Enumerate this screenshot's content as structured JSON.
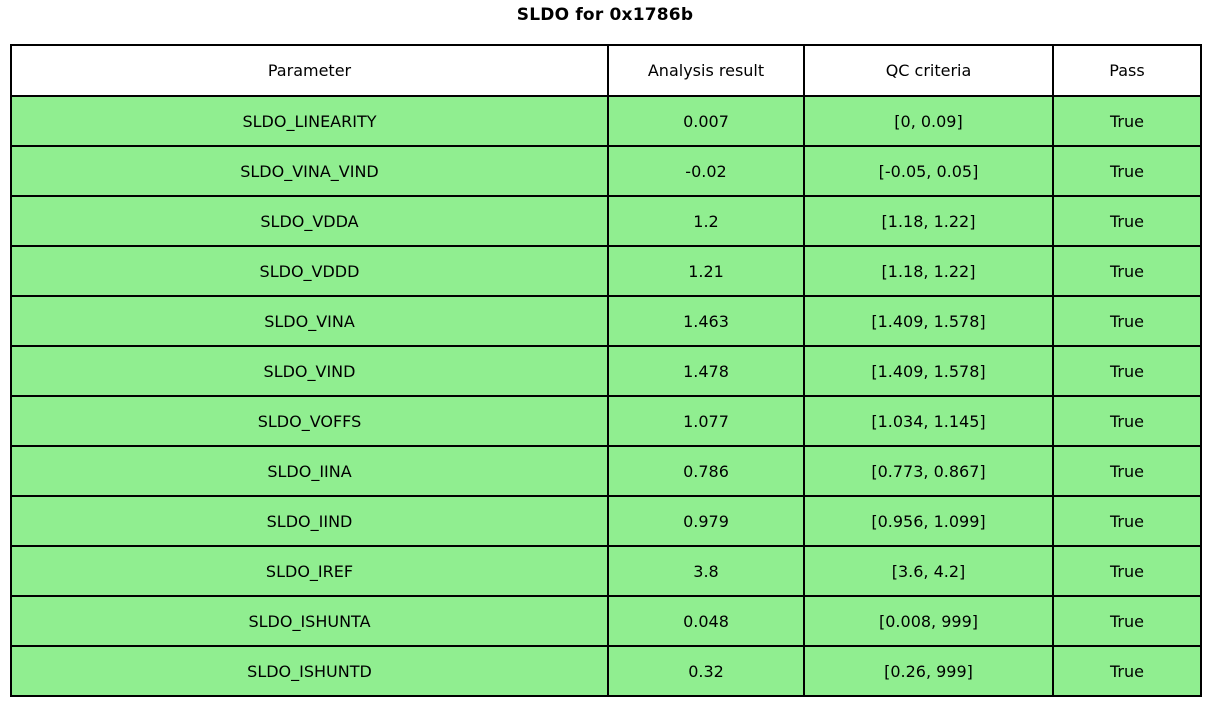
{
  "title": "SLDO for 0x1786b",
  "chart_data": {
    "type": "table",
    "title": "SLDO for 0x1786b",
    "columns": [
      "Parameter",
      "Analysis result",
      "QC criteria",
      "Pass"
    ],
    "rows": [
      [
        "SLDO_LINEARITY",
        "0.007",
        "[0, 0.09]",
        "True"
      ],
      [
        "SLDO_VINA_VIND",
        "-0.02",
        "[-0.05, 0.05]",
        "True"
      ],
      [
        "SLDO_VDDA",
        "1.2",
        "[1.18, 1.22]",
        "True"
      ],
      [
        "SLDO_VDDD",
        "1.21",
        "[1.18, 1.22]",
        "True"
      ],
      [
        "SLDO_VINA",
        "1.463",
        "[1.409, 1.578]",
        "True"
      ],
      [
        "SLDO_VIND",
        "1.478",
        "[1.409, 1.578]",
        "True"
      ],
      [
        "SLDO_VOFFS",
        "1.077",
        "[1.034, 1.145]",
        "True"
      ],
      [
        "SLDO_IINA",
        "0.786",
        "[0.773, 0.867]",
        "True"
      ],
      [
        "SLDO_IIND",
        "0.979",
        "[0.956, 1.099]",
        "True"
      ],
      [
        "SLDO_IREF",
        "3.8",
        "[3.6, 4.2]",
        "True"
      ],
      [
        "SLDO_ISHUNTA",
        "0.048",
        "[0.008, 999]",
        "True"
      ],
      [
        "SLDO_ISHUNTD",
        "0.32",
        "[0.26, 999]",
        "True"
      ]
    ],
    "layout": {
      "header_background": "white",
      "row_background": "light green (all rows pass)",
      "grid": "black cell borders",
      "text_align": "center"
    }
  },
  "colors": {
    "row_pass_bg": "#90ee90",
    "header_bg": "#ffffff",
    "border": "#000000",
    "text": "#000000"
  }
}
